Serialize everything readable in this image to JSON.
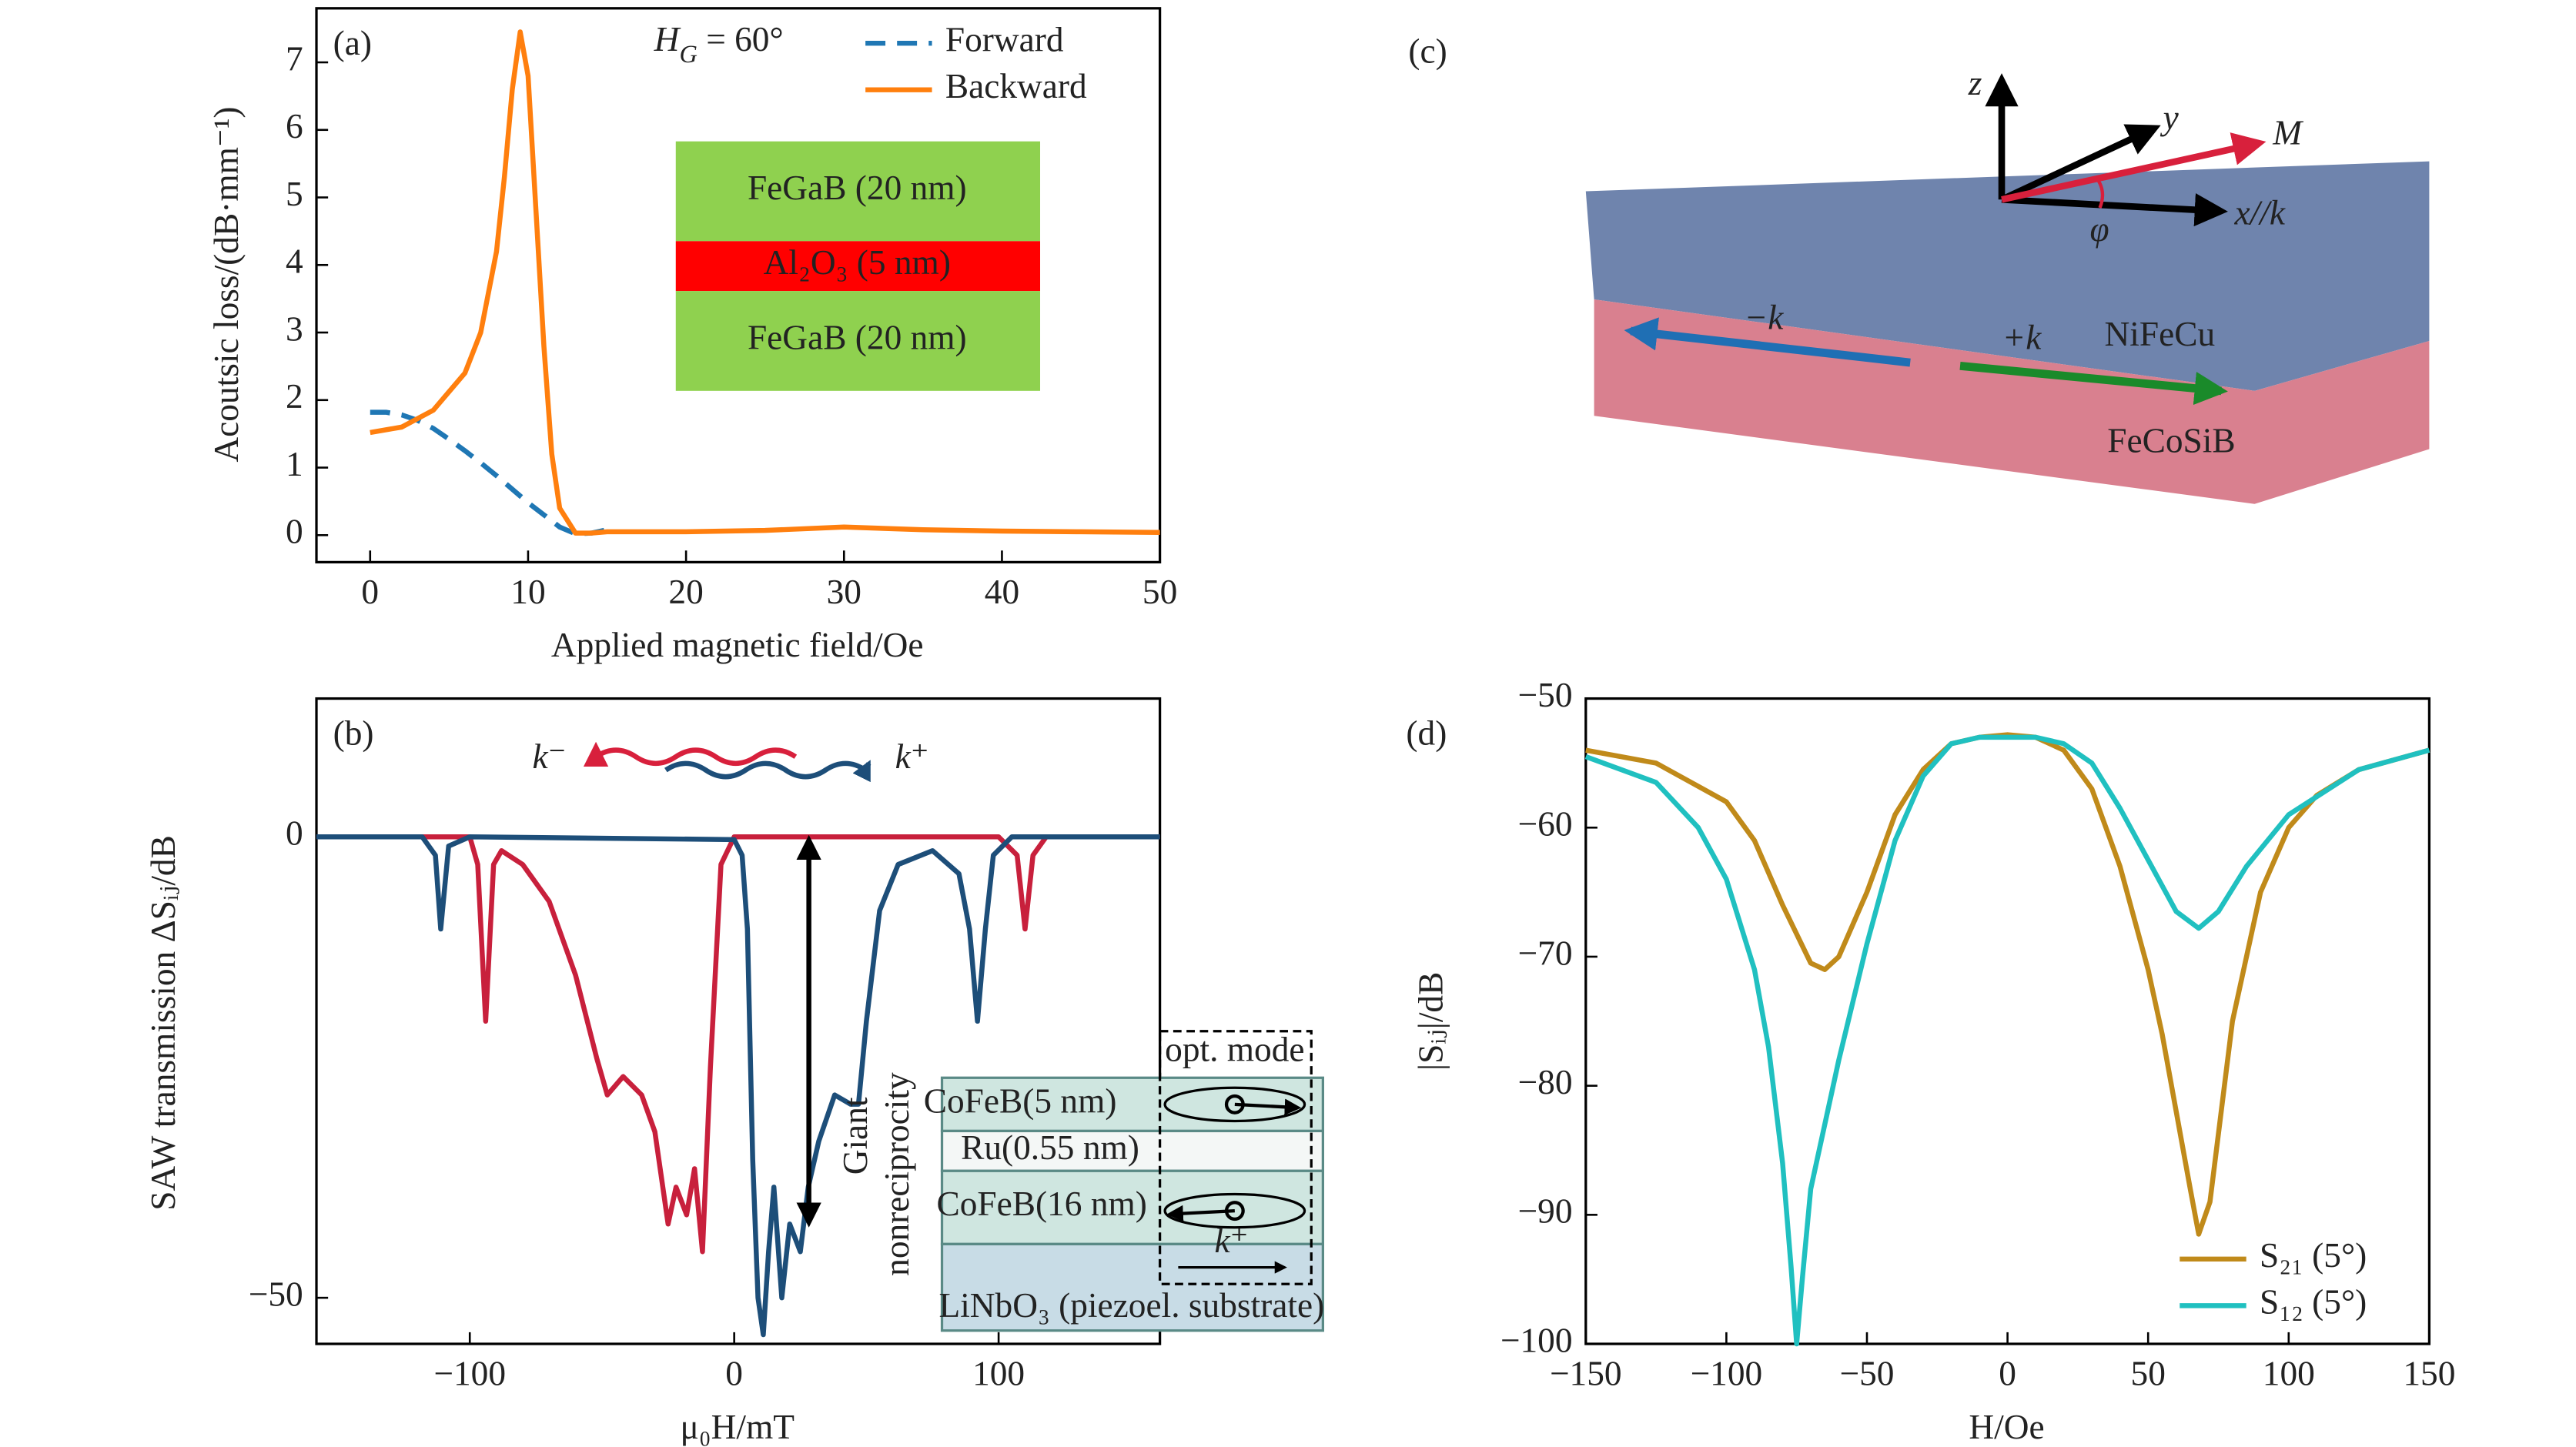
{
  "chart_data": [
    {
      "type": "line",
      "panel_label": "(a)",
      "xlabel": "Applied magnetic field/Oe",
      "ylabel": "Acoutsic loss/(dB·mm⁻¹)",
      "xlim": [
        -3.4,
        50
      ],
      "ylim": [
        -0.4,
        7.8
      ],
      "xticks": [
        0,
        10,
        20,
        30,
        40,
        50
      ],
      "yticks": [
        0,
        1,
        2,
        3,
        4,
        5,
        6,
        7
      ],
      "legend": "top-right",
      "annotation_parts": [
        "H",
        "G",
        " = 60°"
      ],
      "inset_layers": [
        "FeGaB (20 nm)",
        "Al₂O₃ (5 nm)",
        "FeGaB (20 nm)"
      ],
      "inset_colors": [
        "#8fd14f",
        "#ff0000",
        "#8fd14f"
      ],
      "series": [
        {
          "name": "Forward",
          "color": "#1f77b4",
          "dash": true,
          "x": [
            0,
            1,
            2,
            3,
            4,
            5,
            6,
            7,
            8,
            9,
            10,
            11,
            12,
            13,
            14,
            15
          ],
          "values": [
            1.82,
            1.82,
            1.78,
            1.7,
            1.58,
            1.42,
            1.25,
            1.07,
            0.88,
            0.68,
            0.48,
            0.3,
            0.12,
            0.02,
            0.03,
            0.08
          ]
        },
        {
          "name": "Backward",
          "color": "#ff7f0e",
          "dash": false,
          "x": [
            0,
            2,
            4,
            6,
            7,
            8,
            8.5,
            9,
            9.5,
            10,
            10.5,
            11,
            11.5,
            12,
            13,
            14,
            15,
            20,
            25,
            30,
            35,
            40,
            45,
            50
          ],
          "values": [
            1.52,
            1.6,
            1.85,
            2.4,
            3.0,
            4.2,
            5.3,
            6.6,
            7.45,
            6.8,
            4.8,
            2.8,
            1.2,
            0.4,
            0.03,
            0.03,
            0.05,
            0.05,
            0.07,
            0.12,
            0.08,
            0.06,
            0.05,
            0.04
          ]
        }
      ]
    },
    {
      "type": "line",
      "panel_label": "(b)",
      "xlabel": "μ₀H/mT",
      "ylabel": "SAW transmission ΔSᵢⱼ/dB",
      "xlim": [
        -158,
        161
      ],
      "ylim": [
        -55,
        15
      ],
      "xticks": [
        {
          "value": -100,
          "label": "−100"
        },
        0,
        100
      ],
      "yticks": [
        0,
        {
          "value": -50,
          "label": "−50"
        }
      ],
      "annotations": {
        "k_minus": "k⁻",
        "k_plus": "k⁺",
        "giant": "Giant",
        "nonreciprocity": "nonreciprocity"
      },
      "inset": {
        "mode": "opt. mode",
        "layers": [
          "CoFeB(5 nm)",
          "Ru(0.55 nm)",
          "CoFeB(16 nm)",
          "LiNbO₃ (piezoel. substrate)"
        ],
        "k": "k⁺"
      },
      "series": [
        {
          "color": "#c8203c",
          "x": [
            -158,
            -100,
            -97,
            -94,
            -91,
            -88,
            -80,
            -70,
            -60,
            -52,
            -48,
            -42,
            -35,
            -30,
            -25,
            -22,
            -18,
            -15,
            -12,
            -9,
            -5,
            0,
            100,
            107,
            110,
            113,
            118,
            161
          ],
          "values": [
            0,
            0,
            -3,
            -20,
            -3,
            -1.5,
            -3,
            -7,
            -15,
            -24,
            -28,
            -26,
            -28,
            -32,
            -42,
            -38,
            -41,
            -36,
            -45,
            -25,
            -3,
            0,
            0,
            -2,
            -10,
            -2,
            0,
            0
          ]
        },
        {
          "color": "#1d4e79",
          "x": [
            -158,
            -118,
            -113,
            -111,
            -108,
            -100,
            0,
            3,
            5,
            7,
            9,
            11,
            13,
            15,
            18,
            21,
            25,
            28,
            32,
            38,
            44,
            47,
            50,
            55,
            62,
            75,
            85,
            89,
            92,
            95,
            98,
            105,
            161
          ],
          "values": [
            0,
            0,
            -2,
            -10,
            -1,
            0,
            -0.3,
            -2,
            -10,
            -35,
            -50,
            -54,
            -45,
            -38,
            -50,
            -42,
            -45,
            -38,
            -33,
            -28,
            -29,
            -29,
            -20,
            -8,
            -3,
            -1.5,
            -4,
            -10,
            -20,
            -10,
            -2,
            0,
            0
          ]
        }
      ]
    },
    {
      "type": "diagram",
      "panel_label": "(c)",
      "labels": {
        "z": "z",
        "y": "y",
        "M": "M",
        "x": "x//k",
        "phi": "φ",
        "minus_k": "−k",
        "plus_k": "+k",
        "top_layer": "NiFeCu",
        "bottom_layer": "FeCoSiB"
      }
    },
    {
      "type": "line",
      "panel_label": "(d)",
      "xlabel": "H/Oe",
      "ylabel": "|Sᵢⱼ|/dB",
      "xlim": [
        -150,
        150
      ],
      "ylim": [
        -100,
        -50
      ],
      "xticks": [
        {
          "value": -150,
          "label": "−150"
        },
        {
          "value": -100,
          "label": "−100"
        },
        {
          "value": -50,
          "label": "−50"
        },
        0,
        50,
        100,
        150
      ],
      "yticks": [
        {
          "value": -50,
          "label": "−50"
        },
        {
          "value": -60,
          "label": "−60"
        },
        {
          "value": -70,
          "label": "−70"
        },
        {
          "value": -80,
          "label": "−80"
        },
        {
          "value": -90,
          "label": "−90"
        },
        {
          "value": -100,
          "label": "−100"
        }
      ],
      "legend": "bottom-right",
      "series": [
        {
          "name": "S₂₁ (5°)",
          "color": "#c08a1a",
          "x": [
            -150,
            -125,
            -100,
            -90,
            -80,
            -70,
            -65,
            -60,
            -50,
            -40,
            -30,
            -20,
            -10,
            0,
            10,
            20,
            30,
            40,
            50,
            55,
            60,
            65,
            68,
            72,
            76,
            80,
            90,
            100,
            110,
            125,
            150
          ],
          "values": [
            -54,
            -55,
            -58,
            -61,
            -66,
            -70.5,
            -71,
            -70,
            -65,
            -59,
            -55.5,
            -53.5,
            -53,
            -52.8,
            -53,
            -54,
            -57,
            -63,
            -71,
            -76,
            -82,
            -88,
            -91.5,
            -89,
            -82,
            -75,
            -65,
            -60,
            -57.5,
            -55.5,
            -54
          ]
        },
        {
          "name": "S₁₂ (5°)",
          "color": "#20c0c0",
          "x": [
            -150,
            -125,
            -110,
            -100,
            -90,
            -85,
            -80,
            -77,
            -75,
            -73,
            -70,
            -65,
            -60,
            -50,
            -40,
            -30,
            -20,
            -10,
            0,
            10,
            20,
            30,
            40,
            50,
            60,
            68,
            75,
            85,
            100,
            125,
            150
          ],
          "values": [
            -54.5,
            -56.5,
            -60,
            -64,
            -71,
            -77,
            -86,
            -94,
            -100,
            -95,
            -88,
            -83,
            -78,
            -69,
            -61,
            -56,
            -53.5,
            -53,
            -53,
            -53,
            -53.5,
            -55,
            -58.5,
            -62.5,
            -66.5,
            -67.8,
            -66.5,
            -63,
            -59,
            -55.5,
            -54
          ]
        }
      ]
    }
  ]
}
